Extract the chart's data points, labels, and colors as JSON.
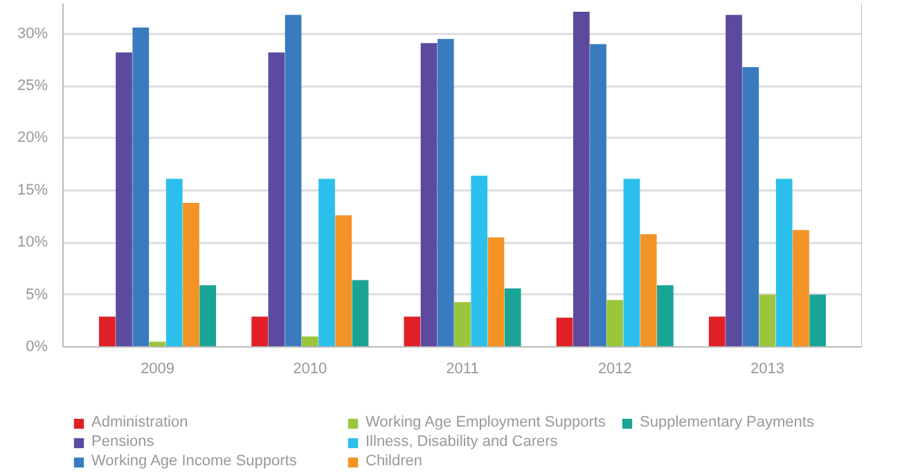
{
  "chart_data": {
    "type": "bar",
    "categories": [
      "2009",
      "2010",
      "2011",
      "2012",
      "2013"
    ],
    "series": [
      {
        "name": "Administration",
        "color": "#e02027",
        "values": [
          2.9,
          2.9,
          2.9,
          2.8,
          2.9
        ]
      },
      {
        "name": "Pensions",
        "color": "#5b4a9e",
        "values": [
          28.2,
          28.2,
          29.1,
          32.1,
          31.8
        ]
      },
      {
        "name": "Working Age Income Supports",
        "color": "#3a7bbf",
        "values": [
          30.6,
          31.8,
          29.5,
          29.0,
          26.8
        ]
      },
      {
        "name": "Working Age Employment Supports",
        "color": "#9bc53d",
        "values": [
          0.5,
          1.0,
          4.3,
          4.5,
          5.0
        ]
      },
      {
        "name": "Illness, Disability and Carers",
        "color": "#2bc0eb",
        "values": [
          16.1,
          16.1,
          16.4,
          16.1,
          16.1
        ]
      },
      {
        "name": "Children",
        "color": "#f39325",
        "values": [
          13.8,
          12.6,
          10.5,
          10.8,
          11.2
        ]
      },
      {
        "name": "Supplementary Payments",
        "color": "#1aa496",
        "values": [
          5.9,
          6.4,
          5.6,
          5.9,
          5.0
        ]
      }
    ],
    "ylim": [
      0,
      32.9
    ],
    "yticks": [
      {
        "value": 0,
        "label": "0%"
      },
      {
        "value": 5,
        "label": "5%"
      },
      {
        "value": 10,
        "label": "10%"
      },
      {
        "value": 15,
        "label": "15%"
      },
      {
        "value": 20,
        "label": "20%"
      },
      {
        "value": 25,
        "label": "25%"
      },
      {
        "value": 30,
        "label": "30%"
      }
    ],
    "grid": "y",
    "legend": "bottom"
  }
}
